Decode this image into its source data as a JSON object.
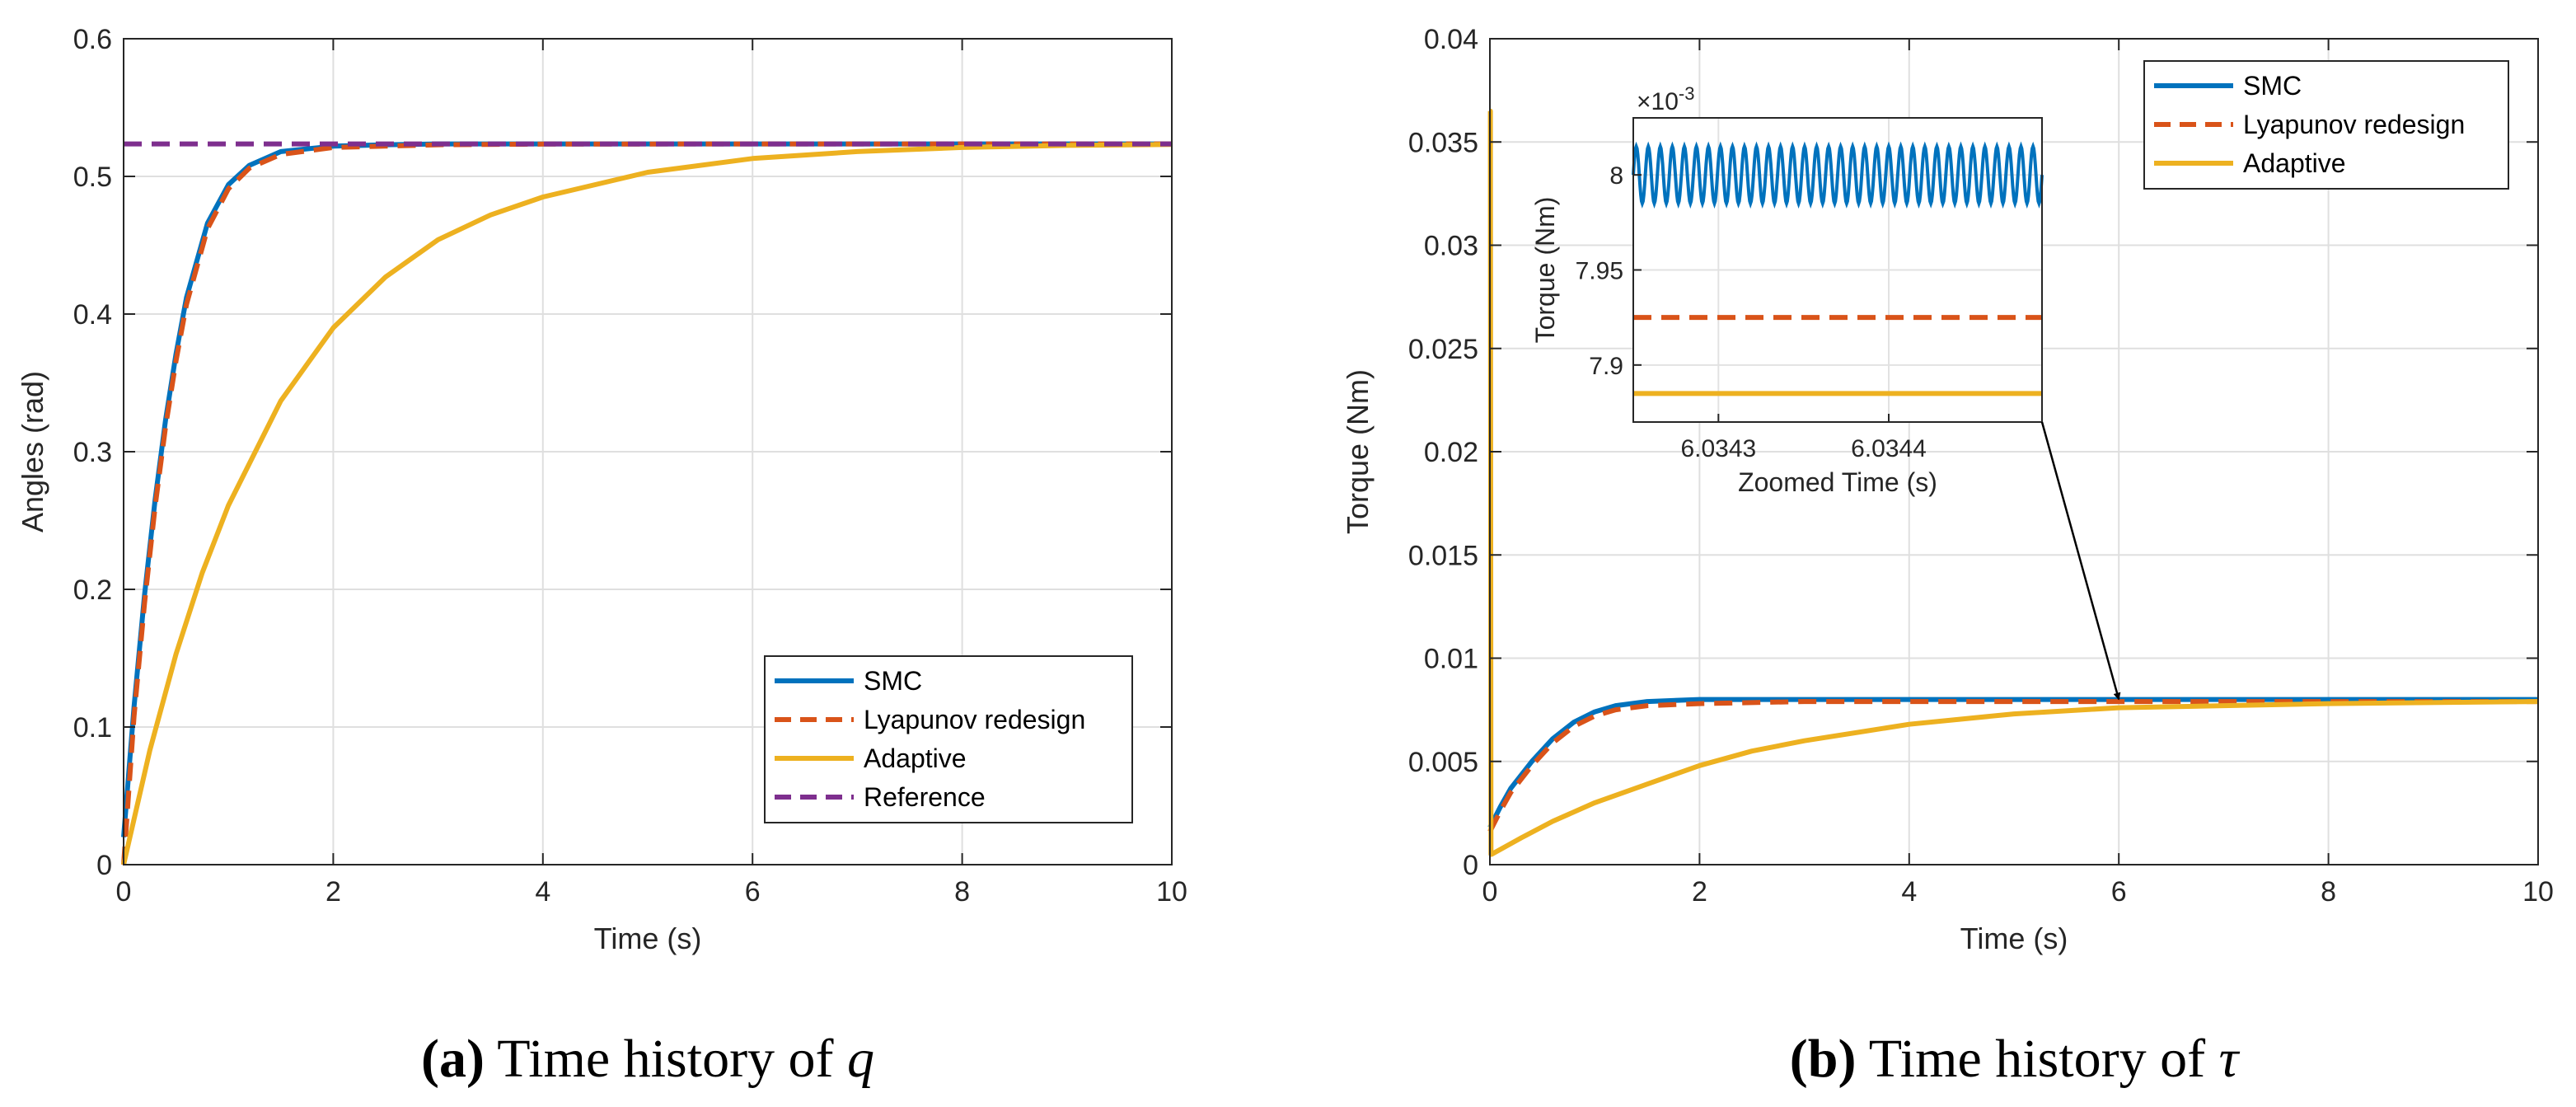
{
  "chart_data": [
    {
      "type": "line",
      "xlabel": "Time (s)",
      "ylabel": "Angles (rad)",
      "xlim": [
        0,
        10
      ],
      "ylim": [
        0,
        0.6
      ],
      "xticks": [
        "0",
        "2",
        "4",
        "6",
        "8",
        "10"
      ],
      "yticks": [
        "0",
        "0.1",
        "0.2",
        "0.3",
        "0.4",
        "0.5",
        "0.6"
      ],
      "grid": true,
      "legend_position": "bottom-right",
      "caption": {
        "letter": "(a)",
        "text": " Time history of ",
        "symbol": "q"
      },
      "series": [
        {
          "name": "SMC",
          "color": "#0072BD",
          "style": "solid",
          "x": [
            0,
            0.1,
            0.2,
            0.3,
            0.4,
            0.5,
            0.6,
            0.8,
            1.0,
            1.2,
            1.5,
            2.0,
            2.5,
            3.0,
            4.0,
            6.0,
            8.0,
            10.0
          ],
          "y": [
            0.02,
            0.115,
            0.196,
            0.265,
            0.323,
            0.371,
            0.412,
            0.466,
            0.494,
            0.508,
            0.518,
            0.522,
            0.523,
            0.5236,
            0.5236,
            0.5236,
            0.5236,
            0.5236
          ]
        },
        {
          "name": "Lyapunov redesign",
          "color": "#D95319",
          "style": "dashed",
          "x": [
            0,
            0.1,
            0.2,
            0.3,
            0.4,
            0.5,
            0.6,
            0.8,
            1.0,
            1.2,
            1.5,
            2.0,
            2.5,
            3.0,
            4.0,
            6.0,
            8.0,
            10.0
          ],
          "y": [
            0.0,
            0.108,
            0.19,
            0.26,
            0.318,
            0.366,
            0.407,
            0.462,
            0.491,
            0.506,
            0.516,
            0.521,
            0.522,
            0.523,
            0.5235,
            0.5236,
            0.5236,
            0.5236
          ]
        },
        {
          "name": "Adaptive",
          "color": "#EDB120",
          "style": "solid",
          "x": [
            0,
            0.25,
            0.5,
            0.75,
            1.0,
            1.5,
            2.0,
            2.5,
            3.0,
            3.5,
            4.0,
            5.0,
            6.0,
            7.0,
            8.0,
            9.0,
            10.0
          ],
          "y": [
            0.0,
            0.083,
            0.153,
            0.212,
            0.261,
            0.337,
            0.39,
            0.427,
            0.454,
            0.472,
            0.485,
            0.503,
            0.513,
            0.518,
            0.521,
            0.5225,
            0.5232
          ]
        },
        {
          "name": "Reference",
          "color": "#7E2F8E",
          "style": "dashed",
          "x": [
            0,
            10
          ],
          "y": [
            0.5236,
            0.5236
          ]
        }
      ]
    },
    {
      "type": "line",
      "xlabel": "Time (s)",
      "ylabel": "Torque (Nm)",
      "xlim": [
        0,
        10
      ],
      "ylim": [
        0,
        0.04
      ],
      "xticks": [
        "0",
        "2",
        "4",
        "6",
        "8",
        "10"
      ],
      "yticks": [
        "0",
        "0.005",
        "0.01",
        "0.015",
        "0.02",
        "0.025",
        "0.03",
        "0.035",
        "0.04"
      ],
      "grid": true,
      "legend_position": "top-right",
      "caption": {
        "letter": "(b)",
        "text": " Time history of ",
        "symbol": "τ"
      },
      "series": [
        {
          "name": "SMC",
          "color": "#0072BD",
          "style": "solid",
          "x": [
            0,
            0.1,
            0.2,
            0.4,
            0.6,
            0.8,
            1.0,
            1.2,
            1.5,
            2.0,
            3.0,
            4.0,
            6.0,
            8.0,
            10.0
          ],
          "y": [
            0.0018,
            0.0028,
            0.0037,
            0.005,
            0.0061,
            0.0069,
            0.0074,
            0.0077,
            0.0079,
            0.008,
            0.008,
            0.008,
            0.008,
            0.008,
            0.008
          ]
        },
        {
          "name": "Lyapunov redesign",
          "color": "#D95319",
          "style": "dashed",
          "x": [
            0,
            0.1,
            0.2,
            0.4,
            0.6,
            0.8,
            1.0,
            1.2,
            1.5,
            2.0,
            3.0,
            4.0,
            6.0,
            8.0,
            10.0
          ],
          "y": [
            0.0016,
            0.0026,
            0.0035,
            0.0048,
            0.0059,
            0.0067,
            0.0072,
            0.0075,
            0.0077,
            0.0078,
            0.0079,
            0.0079,
            0.0079,
            0.0079,
            0.0079
          ]
        },
        {
          "name": "Adaptive",
          "color": "#EDB120",
          "style": "solid",
          "x": [
            0,
            0.005,
            0.01,
            0.015,
            0.3,
            0.6,
            1.0,
            1.5,
            2.0,
            2.5,
            3.0,
            4.0,
            5.0,
            6.0,
            7.0,
            8.0,
            10.0
          ],
          "y": [
            0.0365,
            0.0365,
            0.0005,
            0.0005,
            0.0013,
            0.0021,
            0.003,
            0.0039,
            0.0048,
            0.0055,
            0.006,
            0.0068,
            0.0073,
            0.0076,
            0.0077,
            0.0078,
            0.0079
          ]
        }
      ],
      "inset": {
        "xlabel": "Zoomed Time (s)",
        "ylabel": "Torque (Nm)",
        "exponent": "×10",
        "exponent_power": "-3",
        "xlim": [
          6.03425,
          6.03449
        ],
        "ylim": [
          7.87,
          8.03
        ],
        "xticks": [
          {
            "value": 6.0343,
            "label": "6.0343"
          },
          {
            "value": 6.0344,
            "label": "6.0344"
          }
        ],
        "yticks": [
          {
            "value": 7.9,
            "label": "7.9"
          },
          {
            "value": 7.95,
            "label": "7.95"
          },
          {
            "value": 8.0,
            "label": "8"
          }
        ],
        "series": [
          {
            "name": "SMC",
            "color": "#0072BD",
            "style": "oscillating",
            "center": 8.0,
            "amplitude": 0.015,
            "cycles": 34
          },
          {
            "name": "Lyapunov redesign",
            "color": "#D95319",
            "style": "dashed",
            "value": 7.925
          },
          {
            "name": "Adaptive",
            "color": "#EDB120",
            "style": "solid",
            "value": 7.885
          }
        ],
        "arrow_target": {
          "x": 6.0,
          "y": 0.008
        }
      }
    }
  ]
}
